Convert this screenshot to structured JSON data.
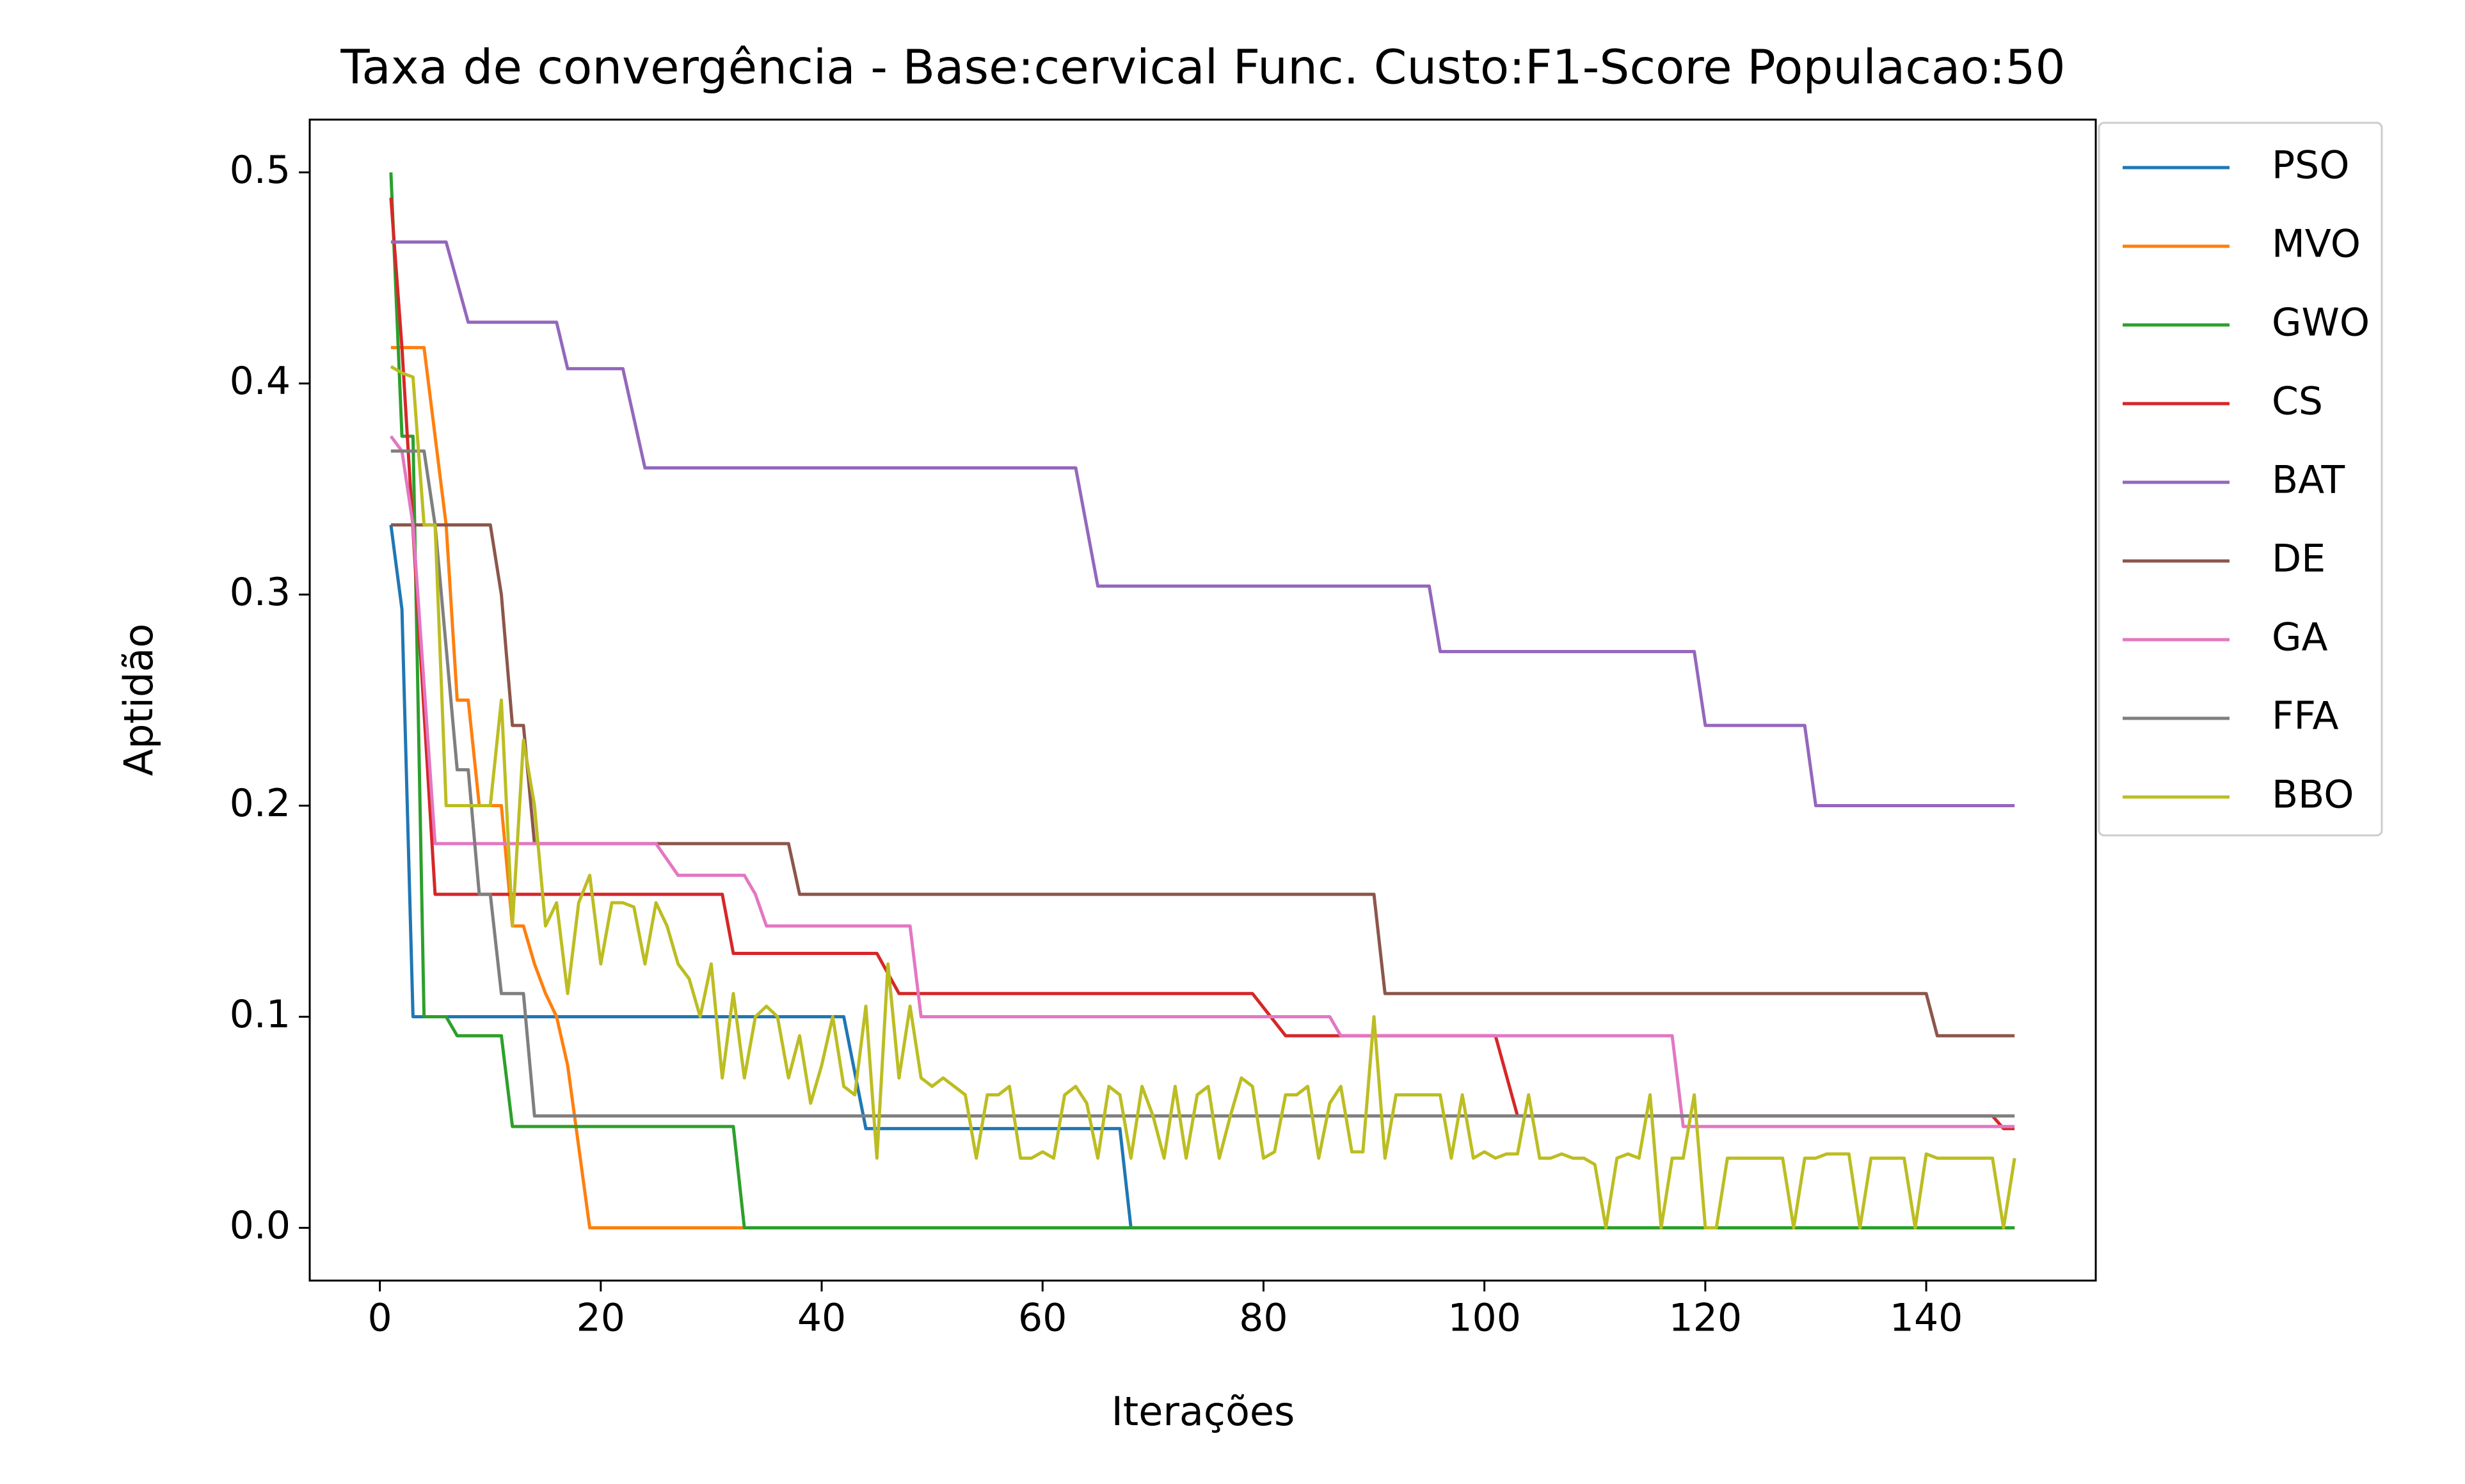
{
  "chart_data": {
    "type": "line",
    "title": "Taxa de convergência - Base:cervical Func. Custo:F1-Score Populacao:50",
    "x_label": "Iterações",
    "y_label": "Aptidão",
    "xlim": [
      -6.35,
      155.35
    ],
    "ylim": [
      -0.025,
      0.525
    ],
    "xticks": [
      0,
      20,
      40,
      60,
      80,
      100,
      120,
      140
    ],
    "yticks": [
      {
        "value": 0,
        "label": "0.0"
      },
      0.1,
      0.2,
      0.3,
      0.4,
      0.5
    ],
    "legend": "outside-upper-right",
    "grid": false,
    "series": [
      {
        "name": "PSO",
        "color": "#1f77b4",
        "x": [
          1,
          2,
          3,
          42,
          44,
          67,
          68,
          148
        ],
        "values": [
          0.333,
          0.293,
          0.1,
          0.1,
          0.047,
          0.047,
          0,
          0
        ]
      },
      {
        "name": "MVO",
        "color": "#ff7f0e",
        "x": [
          1,
          4,
          6,
          7,
          8,
          9,
          10,
          11,
          12,
          13,
          14,
          15,
          16,
          17,
          19,
          148
        ],
        "values": [
          0.417,
          0.417,
          0.333,
          0.25,
          0.25,
          0.2,
          0.2,
          0.2,
          0.143,
          0.143,
          0.125,
          0.111,
          0.1,
          0.077,
          0,
          0
        ]
      },
      {
        "name": "GWO",
        "color": "#2ca02c",
        "x": [
          1,
          2,
          3,
          4,
          6,
          7,
          11,
          12,
          32,
          33,
          148
        ],
        "values": [
          0.5,
          0.375,
          0.375,
          0.1,
          0.1,
          0.091,
          0.091,
          0.048,
          0.048,
          0,
          0
        ]
      },
      {
        "name": "CS",
        "color": "#d62728",
        "x": [
          1,
          2,
          5,
          31,
          32,
          45,
          47,
          79,
          82,
          101,
          103,
          146,
          147,
          148
        ],
        "values": [
          0.488,
          0.417,
          0.158,
          0.158,
          0.13,
          0.13,
          0.111,
          0.111,
          0.091,
          0.091,
          0.053,
          0.053,
          0.047,
          0.047
        ]
      },
      {
        "name": "BAT",
        "color": "#9467bd",
        "x": [
          1,
          6,
          8,
          16,
          17,
          22,
          24,
          63,
          65,
          95,
          96,
          119,
          120,
          129,
          130,
          148
        ],
        "values": [
          0.467,
          0.467,
          0.429,
          0.429,
          0.407,
          0.407,
          0.36,
          0.36,
          0.304,
          0.304,
          0.273,
          0.273,
          0.238,
          0.238,
          0.2,
          0.2
        ]
      },
      {
        "name": "DE",
        "color": "#8c564b",
        "x": [
          1,
          10,
          11,
          12,
          13,
          14,
          37,
          38,
          90,
          91,
          140,
          141,
          148
        ],
        "values": [
          0.333,
          0.333,
          0.3,
          0.238,
          0.238,
          0.182,
          0.182,
          0.158,
          0.158,
          0.111,
          0.111,
          0.091,
          0.091
        ]
      },
      {
        "name": "GA",
        "color": "#e377c2",
        "x": [
          1,
          2,
          3,
          5,
          25,
          27,
          33,
          34,
          35,
          48,
          49,
          86,
          87,
          117,
          118,
          148
        ],
        "values": [
          0.375,
          0.368,
          0.333,
          0.182,
          0.182,
          0.167,
          0.167,
          0.158,
          0.143,
          0.143,
          0.1,
          0.1,
          0.091,
          0.091,
          0.048,
          0.048
        ]
      },
      {
        "name": "FFA",
        "color": "#7f7f7f",
        "x": [
          1,
          4,
          5,
          7,
          8,
          9,
          10,
          11,
          13,
          14,
          148
        ],
        "values": [
          0.368,
          0.368,
          0.333,
          0.217,
          0.217,
          0.158,
          0.158,
          0.111,
          0.111,
          0.053,
          0.053
        ]
      },
      {
        "name": "BBO",
        "color": "#bcbd22",
        "x": [
          1,
          2,
          3,
          4,
          5,
          6,
          7,
          8,
          9,
          10,
          11,
          12,
          13,
          14,
          15,
          16,
          17,
          18,
          19,
          20,
          21,
          22,
          23,
          24,
          25,
          26,
          27,
          28,
          29,
          30,
          31,
          32,
          33,
          34,
          35,
          36,
          37,
          38,
          39,
          40,
          41,
          42,
          43,
          44,
          45,
          46,
          47,
          48,
          49,
          50,
          51,
          52,
          53,
          54,
          55,
          56,
          57,
          58,
          59,
          60,
          61,
          62,
          63,
          64,
          65,
          66,
          67,
          68,
          69,
          70,
          71,
          72,
          73,
          74,
          75,
          76,
          77,
          78,
          79,
          80,
          81,
          82,
          83,
          84,
          85,
          86,
          87,
          88,
          89,
          90,
          91,
          92,
          93,
          94,
          95,
          96,
          97,
          98,
          99,
          100,
          101,
          102,
          103,
          104,
          105,
          106,
          107,
          108,
          109,
          110,
          111,
          112,
          113,
          114,
          115,
          116,
          117,
          118,
          119,
          120,
          121,
          122,
          123,
          124,
          125,
          126,
          127,
          128,
          129,
          130,
          131,
          132,
          133,
          134,
          135,
          136,
          137,
          138,
          139,
          140,
          141,
          142,
          143,
          144,
          145,
          146,
          147,
          148
        ],
        "values": [
          0.408,
          0.405,
          0.403,
          0.333,
          0.333,
          0.2,
          0.2,
          0.2,
          0.2,
          0.2,
          0.25,
          0.143,
          0.231,
          0.2,
          0.143,
          0.154,
          0.111,
          0.154,
          0.167,
          0.125,
          0.154,
          0.154,
          0.152,
          0.125,
          0.154,
          0.143,
          0.125,
          0.118,
          0.1,
          0.125,
          0.071,
          0.111,
          0.071,
          0.1,
          0.105,
          0.1,
          0.071,
          0.091,
          0.059,
          0.077,
          0.1,
          0.067,
          0.063,
          0.105,
          0.033,
          0.125,
          0.071,
          0.105,
          0.071,
          0.067,
          0.071,
          0.067,
          0.063,
          0.033,
          0.063,
          0.063,
          0.067,
          0.033,
          0.033,
          0.036,
          0.033,
          0.063,
          0.067,
          0.059,
          0.033,
          0.067,
          0.063,
          0.033,
          0.067,
          0.053,
          0.033,
          0.067,
          0.033,
          0.063,
          0.067,
          0.033,
          0.053,
          0.071,
          0.067,
          0.033,
          0.036,
          0.063,
          0.063,
          0.067,
          0.033,
          0.059,
          0.067,
          0.036,
          0.036,
          0.1,
          0.033,
          0.063,
          0.063,
          0.063,
          0.063,
          0.063,
          0.033,
          0.063,
          0.033,
          0.036,
          0.033,
          0.035,
          0.035,
          0.063,
          0.033,
          0.033,
          0.035,
          0.033,
          0.033,
          0.03,
          0,
          0.033,
          0.035,
          0.033,
          0.063,
          0,
          0.033,
          0.033,
          0.063,
          0,
          0,
          0.033,
          0.033,
          0.033,
          0.033,
          0.033,
          0.033,
          0,
          0.033,
          0.033,
          0.035,
          0.035,
          0.035,
          0,
          0.033,
          0.033,
          0.033,
          0.033,
          0,
          0.035,
          0.033,
          0.033,
          0.033,
          0.033,
          0.033,
          0.033,
          0,
          0.033
        ]
      }
    ]
  }
}
